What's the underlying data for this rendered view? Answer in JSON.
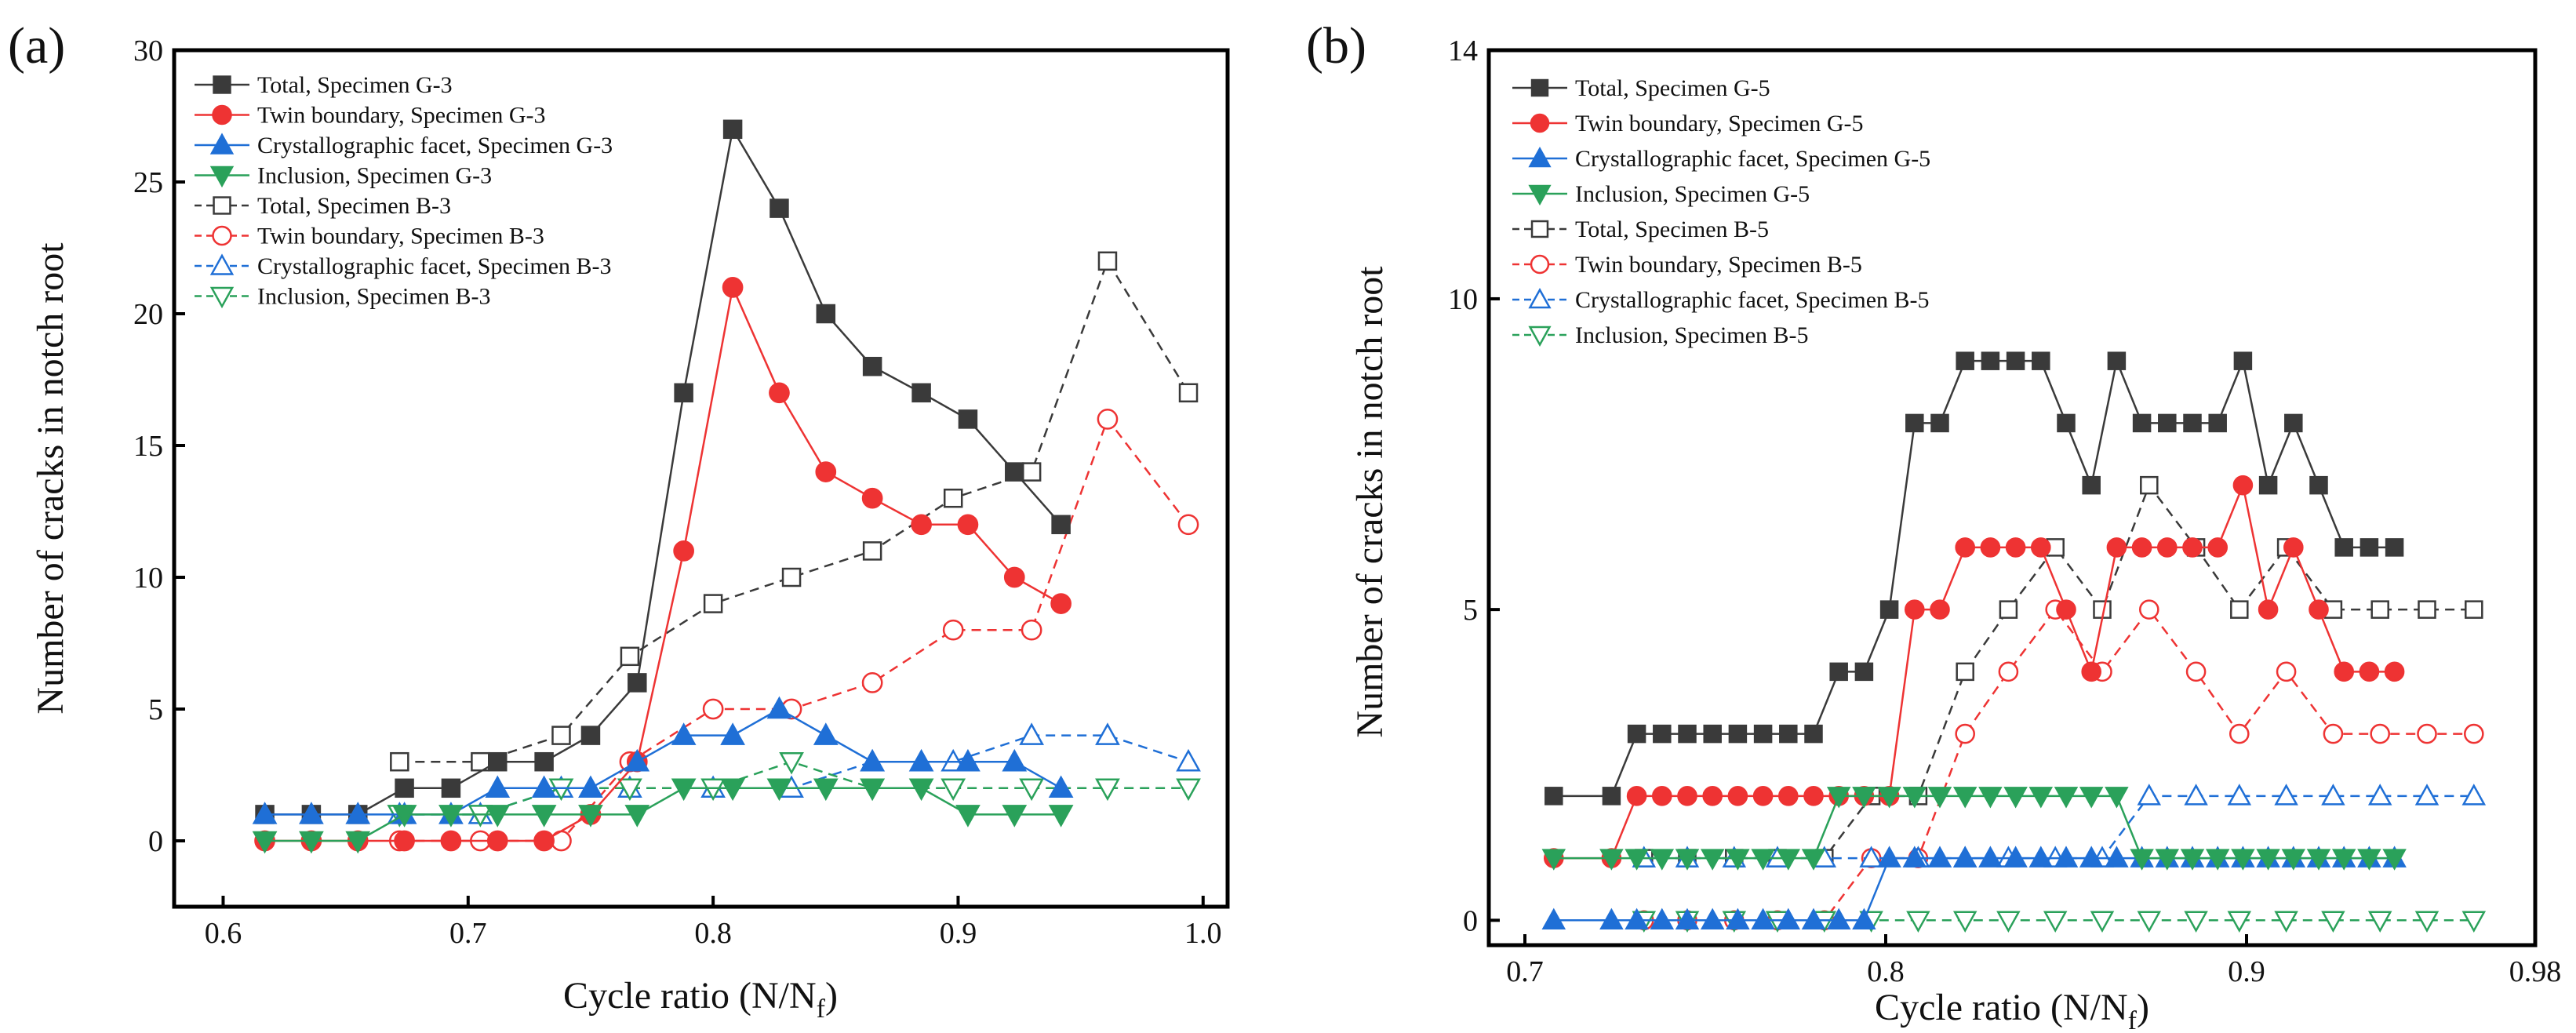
{
  "colors": {
    "total": "#3a3a3a",
    "twin": "#ee3333",
    "facet": "#1f6fd6",
    "inclusion": "#2aa15a"
  },
  "chart_data": [
    {
      "panel_label": "(a)",
      "type": "line",
      "xlabel": "Cycle ratio (N/N",
      "xlabel_sub": "f",
      "xlabel_end": ")",
      "ylabel": "Number of cracks in notch root",
      "xlim": [
        0.58,
        1.01
      ],
      "ylim": [
        -2.5,
        30
      ],
      "xticks": [
        {
          "value": 0.6,
          "label": "0.6"
        },
        {
          "value": 0.7,
          "label": "0.7"
        },
        {
          "value": 0.8,
          "label": "0.8"
        },
        {
          "value": 0.9,
          "label": "0.9"
        },
        {
          "value": 1.0,
          "label": "1.0"
        }
      ],
      "yticks": [
        {
          "value": 0,
          "label": "0"
        },
        {
          "value": 5,
          "label": "5"
        },
        {
          "value": 10,
          "label": "10"
        },
        {
          "value": 15,
          "label": "15"
        },
        {
          "value": 20,
          "label": "20"
        },
        {
          "value": 25,
          "label": "25"
        },
        {
          "value": 30,
          "label": "30"
        }
      ],
      "legend_position": "top-left",
      "series": [
        {
          "name": "Total, Specimen G-3",
          "color": "#3a3a3a",
          "marker": "square",
          "filled": true,
          "dashed": false,
          "x": [
            0.617,
            0.636,
            0.655,
            0.674,
            0.693,
            0.712,
            0.731,
            0.75,
            0.769,
            0.788,
            0.808,
            0.827,
            0.846,
            0.865,
            0.885,
            0.904,
            0.923,
            0.942
          ],
          "y": [
            1,
            1,
            1,
            2,
            2,
            3,
            3,
            4,
            6,
            17,
            27,
            24,
            20,
            18,
            17,
            16,
            14,
            12
          ]
        },
        {
          "name": "Twin boundary, Specimen G-3",
          "color": "#ee3333",
          "marker": "circle",
          "filled": true,
          "dashed": false,
          "x": [
            0.617,
            0.636,
            0.655,
            0.674,
            0.693,
            0.712,
            0.731,
            0.75,
            0.769,
            0.788,
            0.808,
            0.827,
            0.846,
            0.865,
            0.885,
            0.904,
            0.923,
            0.942
          ],
          "y": [
            0,
            0,
            0,
            0,
            0,
            0,
            0,
            1,
            3,
            11,
            21,
            17,
            14,
            13,
            12,
            12,
            10,
            9
          ]
        },
        {
          "name": "Crystallographic facet, Specimen G-3",
          "color": "#1f6fd6",
          "marker": "triangle-up",
          "filled": true,
          "dashed": false,
          "x": [
            0.617,
            0.636,
            0.655,
            0.674,
            0.693,
            0.712,
            0.731,
            0.75,
            0.769,
            0.788,
            0.808,
            0.827,
            0.846,
            0.865,
            0.885,
            0.904,
            0.923,
            0.942
          ],
          "y": [
            1,
            1,
            1,
            1,
            1,
            2,
            2,
            2,
            3,
            4,
            4,
            5,
            4,
            3,
            3,
            3,
            3,
            2
          ]
        },
        {
          "name": "Inclusion, Specimen G-3",
          "color": "#2aa15a",
          "marker": "triangle-down",
          "filled": true,
          "dashed": false,
          "x": [
            0.617,
            0.636,
            0.655,
            0.674,
            0.693,
            0.712,
            0.731,
            0.75,
            0.769,
            0.788,
            0.808,
            0.827,
            0.846,
            0.865,
            0.885,
            0.904,
            0.923,
            0.942
          ],
          "y": [
            0,
            0,
            0,
            1,
            1,
            1,
            1,
            1,
            1,
            2,
            2,
            2,
            2,
            2,
            2,
            1,
            1,
            1
          ]
        },
        {
          "name": "Total, Specimen B-3",
          "color": "#3a3a3a",
          "marker": "square",
          "filled": false,
          "dashed": true,
          "x": [
            0.672,
            0.705,
            0.738,
            0.766,
            0.8,
            0.832,
            0.865,
            0.898,
            0.93,
            0.961,
            0.994
          ],
          "y": [
            3,
            3,
            4,
            7,
            9,
            10,
            11,
            13,
            14,
            22,
            17
          ]
        },
        {
          "name": "Twin boundary, Specimen B-3",
          "color": "#ee3333",
          "marker": "circle",
          "filled": false,
          "dashed": true,
          "x": [
            0.672,
            0.705,
            0.738,
            0.766,
            0.8,
            0.832,
            0.865,
            0.898,
            0.93,
            0.961,
            0.994
          ],
          "y": [
            0,
            0,
            0,
            3,
            5,
            5,
            6,
            8,
            8,
            16,
            12
          ]
        },
        {
          "name": "Crystallographic facet, Specimen B-3",
          "color": "#1f6fd6",
          "marker": "triangle-up",
          "filled": false,
          "dashed": true,
          "x": [
            0.672,
            0.705,
            0.738,
            0.766,
            0.8,
            0.832,
            0.865,
            0.898,
            0.93,
            0.961,
            0.994
          ],
          "y": [
            1,
            1,
            2,
            2,
            2,
            2,
            3,
            3,
            4,
            4,
            3
          ]
        },
        {
          "name": "Inclusion, Specimen B-3",
          "color": "#2aa15a",
          "marker": "triangle-down",
          "filled": false,
          "dashed": true,
          "x": [
            0.672,
            0.705,
            0.738,
            0.766,
            0.8,
            0.832,
            0.865,
            0.898,
            0.93,
            0.961,
            0.994
          ],
          "y": [
            1,
            1,
            2,
            2,
            2,
            3,
            2,
            2,
            2,
            2,
            2
          ]
        }
      ]
    },
    {
      "panel_label": "(b)",
      "type": "line",
      "xlabel": "Cycle ratio (N/N",
      "xlabel_sub": "f",
      "xlabel_end": ")",
      "ylabel": "Number of cracks in notch root",
      "xlim": [
        0.69,
        0.98
      ],
      "ylim": [
        -0.4,
        14
      ],
      "xticks": [
        {
          "value": 0.7,
          "label": "0.7"
        },
        {
          "value": 0.8,
          "label": "0.8"
        },
        {
          "value": 0.9,
          "label": "0.9"
        },
        {
          "value": 0.98,
          "label": "0.98"
        }
      ],
      "yticks": [
        {
          "value": 0,
          "label": "0"
        },
        {
          "value": 5,
          "label": "5"
        },
        {
          "value": 10,
          "label": "10"
        },
        {
          "value": 14,
          "label": "14"
        }
      ],
      "legend_position": "top-left",
      "series": [
        {
          "name": "Total, Specimen G-5",
          "color": "#3a3a3a",
          "marker": "square",
          "filled": true,
          "dashed": false,
          "x": [
            0.708,
            0.724,
            0.731,
            0.738,
            0.745,
            0.752,
            0.759,
            0.766,
            0.773,
            0.78,
            0.787,
            0.794,
            0.801,
            0.808,
            0.815,
            0.822,
            0.829,
            0.836,
            0.843,
            0.85,
            0.857,
            0.864,
            0.871,
            0.878,
            0.885,
            0.892,
            0.899,
            0.906,
            0.913,
            0.92,
            0.927,
            0.934,
            0.941
          ],
          "y": [
            2,
            2,
            3,
            3,
            3,
            3,
            3,
            3,
            3,
            3,
            4,
            4,
            5,
            8,
            8,
            9,
            9,
            9,
            9,
            8,
            7,
            9,
            8,
            8,
            8,
            8,
            9,
            7,
            8,
            7,
            6,
            6,
            6
          ]
        },
        {
          "name": "Twin boundary, Specimen G-5",
          "color": "#ee3333",
          "marker": "circle",
          "filled": true,
          "dashed": false,
          "x": [
            0.708,
            0.724,
            0.731,
            0.738,
            0.745,
            0.752,
            0.759,
            0.766,
            0.773,
            0.78,
            0.787,
            0.794,
            0.801,
            0.808,
            0.815,
            0.822,
            0.829,
            0.836,
            0.843,
            0.85,
            0.857,
            0.864,
            0.871,
            0.878,
            0.885,
            0.892,
            0.899,
            0.906,
            0.913,
            0.92,
            0.927,
            0.934,
            0.941
          ],
          "y": [
            1,
            1,
            2,
            2,
            2,
            2,
            2,
            2,
            2,
            2,
            2,
            2,
            2,
            5,
            5,
            6,
            6,
            6,
            6,
            5,
            4,
            6,
            6,
            6,
            6,
            6,
            7,
            5,
            6,
            5,
            4,
            4,
            4
          ]
        },
        {
          "name": "Crystallographic facet, Specimen G-5",
          "color": "#1f6fd6",
          "marker": "triangle-up",
          "filled": true,
          "dashed": false,
          "x": [
            0.708,
            0.724,
            0.731,
            0.738,
            0.745,
            0.752,
            0.759,
            0.766,
            0.773,
            0.78,
            0.787,
            0.794,
            0.801,
            0.808,
            0.815,
            0.822,
            0.829,
            0.836,
            0.843,
            0.85,
            0.857,
            0.864,
            0.871,
            0.878,
            0.885,
            0.892,
            0.899,
            0.906,
            0.913,
            0.92,
            0.927,
            0.934,
            0.941
          ],
          "y": [
            0,
            0,
            0,
            0,
            0,
            0,
            0,
            0,
            0,
            0,
            0,
            0,
            1,
            1,
            1,
            1,
            1,
            1,
            1,
            1,
            1,
            1,
            1,
            1,
            1,
            1,
            1,
            1,
            1,
            1,
            1,
            1,
            1
          ]
        },
        {
          "name": "Inclusion, Specimen G-5",
          "color": "#2aa15a",
          "marker": "triangle-down",
          "filled": true,
          "dashed": false,
          "x": [
            0.708,
            0.724,
            0.731,
            0.738,
            0.745,
            0.752,
            0.759,
            0.766,
            0.773,
            0.78,
            0.787,
            0.794,
            0.801,
            0.808,
            0.815,
            0.822,
            0.829,
            0.836,
            0.843,
            0.85,
            0.857,
            0.864,
            0.871,
            0.878,
            0.885,
            0.892,
            0.899,
            0.906,
            0.913,
            0.92,
            0.927,
            0.934,
            0.941
          ],
          "y": [
            1,
            1,
            1,
            1,
            1,
            1,
            1,
            1,
            1,
            1,
            2,
            2,
            2,
            2,
            2,
            2,
            2,
            2,
            2,
            2,
            2,
            2,
            1,
            1,
            1,
            1,
            1,
            1,
            1,
            1,
            1,
            1,
            1
          ]
        },
        {
          "name": "Total, Specimen B-5",
          "color": "#3a3a3a",
          "marker": "square",
          "filled": false,
          "dashed": true,
          "x": [
            0.733,
            0.745,
            0.758,
            0.77,
            0.783,
            0.796,
            0.809,
            0.822,
            0.834,
            0.847,
            0.86,
            0.873,
            0.886,
            0.898,
            0.911,
            0.924,
            0.937,
            0.95,
            0.963
          ],
          "y": [
            1,
            1,
            1,
            1,
            1,
            2,
            2,
            4,
            5,
            6,
            5,
            7,
            6,
            5,
            6,
            5,
            5,
            5,
            5
          ]
        },
        {
          "name": "Twin boundary, Specimen B-5",
          "color": "#ee3333",
          "marker": "circle",
          "filled": false,
          "dashed": true,
          "x": [
            0.733,
            0.745,
            0.758,
            0.77,
            0.783,
            0.796,
            0.809,
            0.822,
            0.834,
            0.847,
            0.86,
            0.873,
            0.886,
            0.898,
            0.911,
            0.924,
            0.937,
            0.95,
            0.963
          ],
          "y": [
            0,
            0,
            0,
            0,
            0,
            1,
            1,
            3,
            4,
            5,
            4,
            5,
            4,
            3,
            4,
            3,
            3,
            3,
            3
          ]
        },
        {
          "name": "Crystallographic facet, Specimen B-5",
          "color": "#1f6fd6",
          "marker": "triangle-up",
          "filled": false,
          "dashed": true,
          "x": [
            0.733,
            0.745,
            0.758,
            0.77,
            0.783,
            0.796,
            0.809,
            0.822,
            0.834,
            0.847,
            0.86,
            0.873,
            0.886,
            0.898,
            0.911,
            0.924,
            0.937,
            0.95,
            0.963
          ],
          "y": [
            1,
            1,
            1,
            1,
            1,
            1,
            1,
            1,
            1,
            1,
            1,
            2,
            2,
            2,
            2,
            2,
            2,
            2,
            2
          ]
        },
        {
          "name": "Inclusion, Specimen B-5",
          "color": "#2aa15a",
          "marker": "triangle-down",
          "filled": false,
          "dashed": true,
          "x": [
            0.733,
            0.745,
            0.758,
            0.77,
            0.783,
            0.796,
            0.809,
            0.822,
            0.834,
            0.847,
            0.86,
            0.873,
            0.886,
            0.898,
            0.911,
            0.924,
            0.937,
            0.95,
            0.963
          ],
          "y": [
            0,
            0,
            0,
            0,
            0,
            0,
            0,
            0,
            0,
            0,
            0,
            0,
            0,
            0,
            0,
            0,
            0,
            0,
            0
          ]
        }
      ]
    }
  ]
}
